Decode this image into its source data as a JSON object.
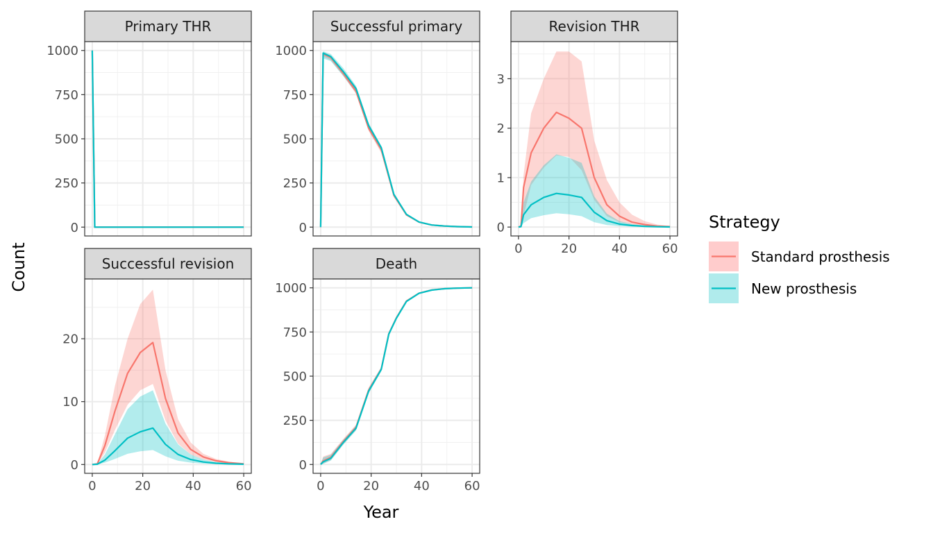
{
  "chart_data": {
    "type": "line",
    "xlabel": "Year",
    "ylabel": "Count",
    "legend": {
      "title": "Strategy",
      "placement": "right",
      "entries": [
        {
          "label": "Standard prosthesis",
          "line_color": "#F8766D",
          "fill_color": "#FFCCCC"
        },
        {
          "label": "New prosthesis",
          "line_color": "#00BFC4",
          "fill_color": "#B0EBEC"
        }
      ]
    },
    "ribbon_overlap_color": "#A9B8B8",
    "grid": true,
    "panels": [
      {
        "title": "Primary THR",
        "xlim": [
          -3,
          63
        ],
        "ylim": [
          -50,
          1050
        ],
        "xticks": [
          0,
          20,
          40,
          60
        ],
        "yticks": [
          0,
          250,
          500,
          750,
          1000
        ],
        "ytick_labels": [
          "0",
          "250",
          "500",
          "750",
          "1000"
        ],
        "show_x_axis": false,
        "series": [
          {
            "name": "Standard prosthesis",
            "x": [
              0,
              1,
              60
            ],
            "y": [
              1000,
              0,
              0
            ],
            "lo": [
              1000,
              0,
              0
            ],
            "hi": [
              1000,
              0,
              0
            ]
          },
          {
            "name": "New prosthesis",
            "x": [
              0,
              1,
              60
            ],
            "y": [
              1000,
              0,
              0
            ],
            "lo": [
              1000,
              0,
              0
            ],
            "hi": [
              1000,
              0,
              0
            ]
          }
        ]
      },
      {
        "title": "Successful primary",
        "xlim": [
          -3,
          63
        ],
        "ylim": [
          -50,
          1050
        ],
        "xticks": [
          0,
          20,
          40,
          60
        ],
        "yticks": [
          0,
          250,
          500,
          750,
          1000
        ],
        "ytick_labels": [
          "0",
          "250",
          "500",
          "750",
          "1000"
        ],
        "show_x_axis": false,
        "series": [
          {
            "name": "Standard prosthesis",
            "x": [
              0,
              1,
              4,
              9,
              14,
              19,
              24,
              29,
              34,
              39,
              44,
              49,
              54,
              60
            ],
            "y": [
              0,
              980,
              960,
              870,
              770,
              560,
              440,
              180,
              70,
              28,
              12,
              6,
              3,
              1
            ],
            "lo": [
              0,
              965,
              945,
              855,
              755,
              545,
              420,
              170,
              64,
              25,
              10,
              5,
              2,
              0
            ],
            "hi": [
              0,
              992,
              972,
              882,
              790,
              575,
              455,
              190,
              75,
              30,
              13,
              7,
              4,
              1
            ]
          },
          {
            "name": "New prosthesis",
            "x": [
              0,
              1,
              4,
              9,
              14,
              19,
              24,
              29,
              34,
              39,
              44,
              49,
              54,
              60
            ],
            "y": [
              0,
              985,
              965,
              880,
              785,
              575,
              450,
              185,
              72,
              29,
              12,
              6,
              3,
              1
            ],
            "lo": [
              0,
              955,
              940,
              855,
              760,
              550,
              430,
              175,
              66,
              26,
              11,
              5,
              2,
              0
            ],
            "hi": [
              0,
              995,
              980,
              900,
              800,
              590,
              460,
              195,
              78,
              31,
              14,
              7,
              4,
              1
            ]
          }
        ]
      },
      {
        "title": "Revision THR",
        "xlim": [
          -3,
          63
        ],
        "ylim": [
          -0.18,
          3.75
        ],
        "xticks": [
          0,
          20,
          40,
          60
        ],
        "yticks": [
          0,
          1,
          2,
          3
        ],
        "ytick_labels": [
          "0",
          "1",
          "2",
          "3"
        ],
        "show_x_axis": true,
        "series": [
          {
            "name": "Standard prosthesis",
            "x": [
              0,
              1,
              2,
              5,
              10,
              15,
              20,
              25,
              30,
              35,
              40,
              45,
              50,
              55,
              60
            ],
            "y": [
              0,
              0.02,
              0.8,
              1.5,
              2.0,
              2.32,
              2.2,
              2.0,
              1.0,
              0.45,
              0.22,
              0.1,
              0.05,
              0.02,
              0.01
            ],
            "lo": [
              0,
              0.0,
              0.22,
              0.85,
              1.2,
              1.45,
              1.42,
              1.15,
              0.55,
              0.22,
              0.1,
              0.05,
              0.02,
              0.01,
              0.0
            ],
            "hi": [
              0,
              0.05,
              1.05,
              2.3,
              3.0,
              3.55,
              3.55,
              3.35,
              1.75,
              0.95,
              0.5,
              0.25,
              0.12,
              0.05,
              0.02
            ]
          },
          {
            "name": "New prosthesis",
            "x": [
              0,
              1,
              2,
              5,
              10,
              15,
              20,
              25,
              30,
              35,
              40,
              45,
              50,
              55,
              60
            ],
            "y": [
              0,
              0.01,
              0.25,
              0.45,
              0.6,
              0.68,
              0.65,
              0.6,
              0.3,
              0.13,
              0.06,
              0.03,
              0.015,
              0.007,
              0.003
            ],
            "lo": [
              0,
              0.0,
              0.08,
              0.18,
              0.24,
              0.28,
              0.26,
              0.22,
              0.1,
              0.04,
              0.02,
              0.01,
              0.005,
              0.002,
              0.001
            ],
            "hi": [
              0,
              0.02,
              0.5,
              0.92,
              1.25,
              1.47,
              1.4,
              1.3,
              0.62,
              0.27,
              0.12,
              0.06,
              0.03,
              0.015,
              0.007
            ]
          }
        ]
      },
      {
        "title": "Successful revision",
        "xlim": [
          -3,
          63
        ],
        "ylim": [
          -1.4,
          29.5
        ],
        "xticks": [
          0,
          20,
          40,
          60
        ],
        "yticks": [
          0,
          10,
          20
        ],
        "ytick_labels": [
          "0",
          "10",
          "20"
        ],
        "show_x_axis": true,
        "series": [
          {
            "name": "Standard prosthesis",
            "x": [
              0,
              2,
              5,
              9,
              14,
              19,
              24,
              29,
              34,
              39,
              44,
              49,
              54,
              60
            ],
            "y": [
              0,
              0.1,
              3,
              8.5,
              14.5,
              17.8,
              19.4,
              10.5,
              5.0,
              2.4,
              1.2,
              0.6,
              0.3,
              0.1
            ],
            "lo": [
              0,
              0.05,
              1.9,
              5.5,
              9.5,
              11.8,
              12.8,
              7.0,
              3.3,
              1.6,
              0.8,
              0.4,
              0.2,
              0.05
            ],
            "hi": [
              0,
              0.2,
              4.6,
              12.5,
              20.0,
              25.5,
              27.8,
              15.0,
              7.2,
              3.5,
              1.7,
              0.9,
              0.45,
              0.15
            ]
          },
          {
            "name": "New prosthesis",
            "x": [
              0,
              2,
              5,
              9,
              14,
              19,
              24,
              29,
              34,
              39,
              44,
              49,
              54,
              60
            ],
            "y": [
              0,
              0.05,
              0.7,
              2.2,
              4.2,
              5.2,
              5.8,
              3.2,
              1.6,
              0.8,
              0.4,
              0.2,
              0.1,
              0.05
            ],
            "lo": [
              0,
              0.02,
              0.3,
              0.9,
              1.7,
              2.1,
              2.3,
              1.3,
              0.6,
              0.3,
              0.15,
              0.07,
              0.03,
              0.01
            ],
            "hi": [
              0,
              0.1,
              1.6,
              4.8,
              8.8,
              10.8,
              11.8,
              6.5,
              3.2,
              1.6,
              0.8,
              0.4,
              0.2,
              0.1
            ]
          }
        ]
      },
      {
        "title": "Death",
        "xlim": [
          -3,
          63
        ],
        "ylim": [
          -50,
          1050
        ],
        "xticks": [
          0,
          20,
          40,
          60
        ],
        "yticks": [
          0,
          250,
          500,
          750,
          1000
        ],
        "ytick_labels": [
          "0",
          "250",
          "500",
          "750",
          "1000"
        ],
        "show_x_axis": true,
        "series": [
          {
            "name": "Standard prosthesis",
            "x": [
              0,
              1,
              4,
              9,
              14,
              19,
              24,
              27,
              30,
              34,
              39,
              44,
              49,
              54,
              60
            ],
            "y": [
              0,
              20,
              40,
              130,
              210,
              420,
              540,
              740,
              830,
              925,
              970,
              988,
              995,
              998,
              1000
            ],
            "lo": [
              0,
              5,
              25,
              115,
              195,
              405,
              530,
              730,
              825,
              920,
              968,
              986,
              994,
              997,
              999
            ],
            "hi": [
              0,
              45,
              60,
              145,
              225,
              435,
              552,
              750,
              835,
              930,
              972,
              990,
              996,
              999,
              1000
            ]
          },
          {
            "name": "New prosthesis",
            "x": [
              0,
              1,
              4,
              9,
              14,
              19,
              24,
              27,
              30,
              34,
              39,
              44,
              49,
              54,
              60
            ],
            "y": [
              0,
              15,
              35,
              125,
              205,
              415,
              538,
              738,
              828,
              923,
              969,
              987,
              995,
              998,
              1000
            ],
            "lo": [
              0,
              3,
              22,
              112,
              192,
              402,
              528,
              728,
              822,
              918,
              966,
              985,
              993,
              997,
              999
            ],
            "hi": [
              0,
              40,
              55,
              140,
              220,
              430,
              550,
              748,
              833,
              928,
              971,
              989,
              996,
              999,
              1000
            ]
          }
        ]
      }
    ]
  }
}
